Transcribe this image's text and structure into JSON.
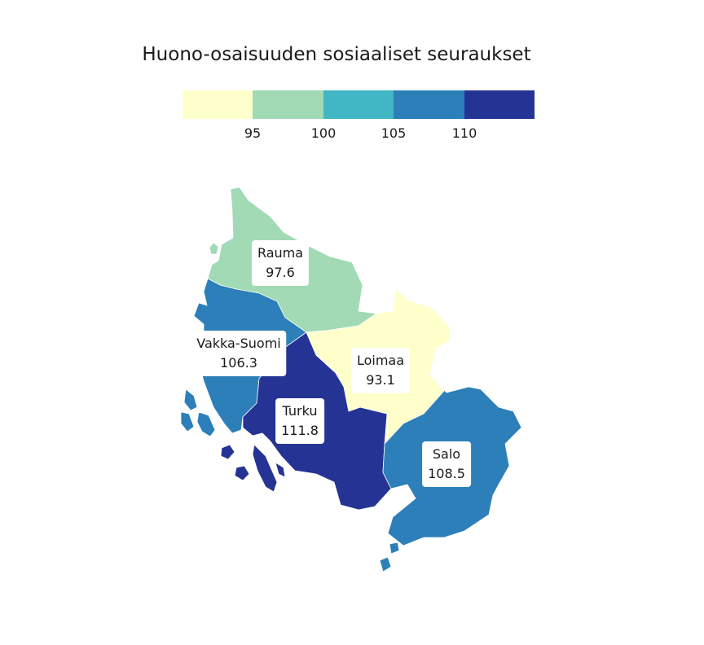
{
  "title": "Huono-osaisuuden sosiaaliset seuraukset",
  "legend": {
    "colors": [
      "#ffffcc",
      "#a1dab4",
      "#41b6c4",
      "#2c7fb8",
      "#253494"
    ],
    "ticks": [
      "95",
      "100",
      "105",
      "110"
    ]
  },
  "regions": [
    {
      "name": "Rauma",
      "value": "97.6",
      "color": "#a1dab4"
    },
    {
      "name": "Vakka-Suomi",
      "value": "106.3",
      "color": "#2c7fb8"
    },
    {
      "name": "Loimaa",
      "value": "93.1",
      "color": "#ffffcc"
    },
    {
      "name": "Turku",
      "value": "111.8",
      "color": "#253494"
    },
    {
      "name": "Salo",
      "value": "108.5",
      "color": "#2c7fb8"
    }
  ]
}
